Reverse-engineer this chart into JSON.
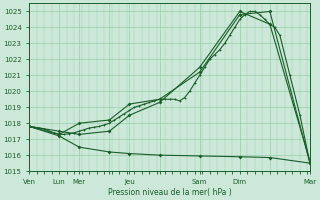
{
  "bg_color": "#cce8d8",
  "grid_color": "#99ccaa",
  "line_color": "#1a5c2a",
  "xlabel": "Pression niveau de la mer( hPa )",
  "ylim": [
    1015,
    1025.5
  ],
  "yticks": [
    1015,
    1016,
    1017,
    1018,
    1019,
    1020,
    1021,
    1022,
    1023,
    1024,
    1025
  ],
  "xtick_positions": [
    0,
    3,
    5,
    8,
    10,
    13,
    17,
    21,
    24,
    28
  ],
  "xtick_labels": [
    "Ven",
    "Lun",
    "Mer",
    "",
    "Jeu",
    "",
    "Sam",
    "Dim",
    "",
    "Mar"
  ],
  "xlim": [
    0,
    28
  ],
  "series1": {
    "x": [
      0,
      0.5,
      1,
      1.5,
      2,
      2.5,
      3,
      3.5,
      4,
      4.5,
      5,
      5.5,
      6,
      6.5,
      7,
      7.5,
      8,
      8.5,
      9,
      9.5,
      10,
      10.5,
      11,
      11.5,
      12,
      12.5,
      13,
      13.5,
      14,
      14.5,
      15,
      15.5,
      16,
      16.5,
      17,
      17.5,
      18,
      18.5,
      19,
      19.5,
      20,
      20.5,
      21,
      21.5,
      22,
      22.5,
      23,
      23.5,
      24,
      24.5,
      25,
      26,
      27,
      28
    ],
    "y": [
      1017.8,
      1017.75,
      1017.7,
      1017.65,
      1017.5,
      1017.4,
      1017.3,
      1017.3,
      1017.35,
      1017.4,
      1017.5,
      1017.6,
      1017.7,
      1017.75,
      1017.8,
      1017.9,
      1018.0,
      1018.2,
      1018.4,
      1018.6,
      1018.8,
      1019.0,
      1019.1,
      1019.2,
      1019.3,
      1019.4,
      1019.5,
      1019.5,
      1019.5,
      1019.5,
      1019.4,
      1019.6,
      1020.0,
      1020.5,
      1021.0,
      1021.5,
      1022.0,
      1022.3,
      1022.6,
      1023.0,
      1023.5,
      1024.0,
      1024.5,
      1024.8,
      1025.0,
      1025.0,
      1024.8,
      1024.5,
      1024.2,
      1024.0,
      1023.5,
      1021.0,
      1018.5,
      1015.5
    ]
  },
  "series2": {
    "x": [
      0,
      3,
      5,
      8,
      10,
      13,
      17,
      21,
      24,
      28
    ],
    "y": [
      1017.8,
      1017.3,
      1018.0,
      1018.2,
      1019.2,
      1019.5,
      1021.2,
      1024.8,
      1025.0,
      1015.5
    ]
  },
  "series3": {
    "x": [
      0,
      3,
      5,
      8,
      10,
      13,
      17,
      21,
      24,
      28
    ],
    "y": [
      1017.8,
      1017.2,
      1016.5,
      1016.2,
      1016.1,
      1016.0,
      1015.95,
      1015.9,
      1015.85,
      1015.5
    ]
  },
  "series4": {
    "x": [
      0,
      3,
      5,
      8,
      10,
      13,
      17,
      21,
      24,
      28
    ],
    "y": [
      1017.8,
      1017.5,
      1017.3,
      1017.5,
      1018.5,
      1019.3,
      1021.5,
      1025.0,
      1024.2,
      1015.6
    ]
  }
}
